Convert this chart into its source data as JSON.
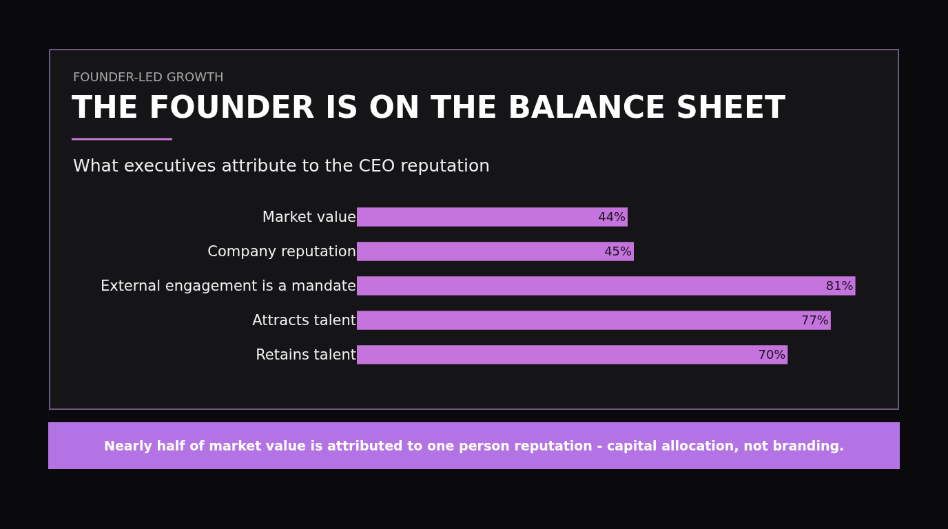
{
  "chart_data": {
    "type": "bar",
    "orientation": "horizontal",
    "title": "THE FOUNDER IS ON THE BALANCE SHEET",
    "subtitle": "What executives attribute to the CEO reputation",
    "categories": [
      "Market value",
      "Company reputation",
      "External engagement is a mandate",
      "Attracts talent",
      "Retains talent"
    ],
    "values": [
      44,
      45,
      81,
      77,
      70
    ],
    "value_labels": [
      "44%",
      "45%",
      "81%",
      "77%",
      "70%"
    ],
    "color": "#c474dc",
    "tick_labels": "y",
    "grid": false,
    "legend": false,
    "annotations": [
      "FOUNDER-LED GROWTH",
      "Nearly half of market value is attributed to one person reputation - capital allocation, not branding."
    ]
  }
}
